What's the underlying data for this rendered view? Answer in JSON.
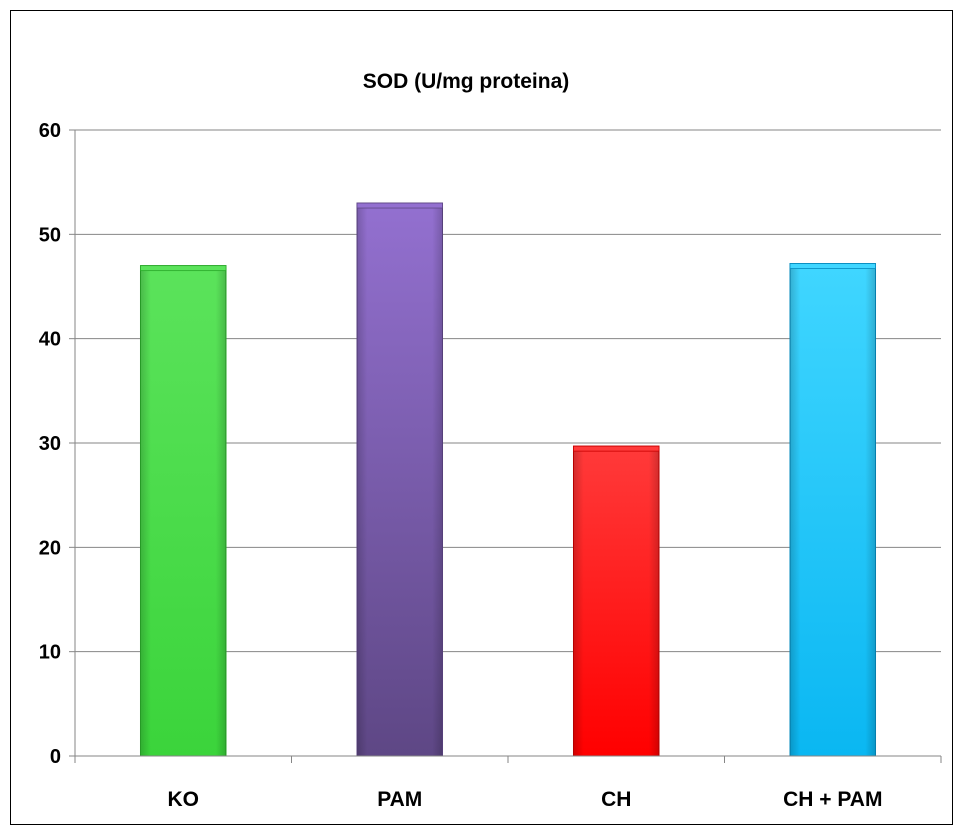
{
  "chart_data": {
    "type": "bar",
    "title": "SOD (U/mg proteina)",
    "xlabel": "",
    "ylabel": "",
    "categories": [
      "KO",
      "PAM",
      "CH",
      "CH + PAM"
    ],
    "values": [
      47,
      53,
      29.7,
      47.2
    ],
    "ylim": [
      0,
      60
    ],
    "yticks": [
      0,
      10,
      20,
      30,
      40,
      50,
      60
    ],
    "grid": true,
    "legend": "none",
    "colors": [
      {
        "light": "#5be35b",
        "main": "#3bd43b",
        "dark": "#2aa82a"
      },
      {
        "light": "#9370d0",
        "main": "#8460b4",
        "dark": "#5e4785"
      },
      {
        "light": "#ff3a3a",
        "main": "#ff0000",
        "dark": "#c80000"
      },
      {
        "light": "#40d6ff",
        "main": "#0ab7f2",
        "dark": "#078bbf"
      }
    ]
  }
}
